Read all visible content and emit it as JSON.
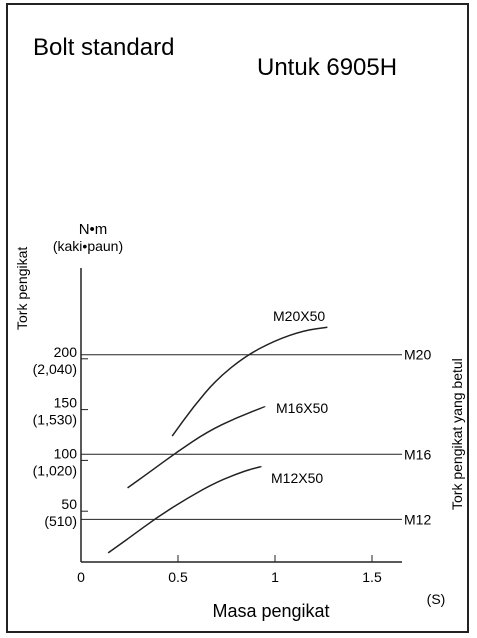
{
  "title": "Bolt standard",
  "subtitle": "Untuk 6905H",
  "y_unit": "N•m",
  "y_unit_alt": "(kaki•paun)",
  "y_label_left": "Tork pengikat",
  "y_label_right": "Tork pengikat yang betul",
  "x_label": "Masa pengikat",
  "x_unit": "(S)",
  "chart_data": {
    "type": "line",
    "title": "Bolt standard",
    "subtitle": "Untuk 6905H",
    "xlabel": "Masa pengikat",
    "ylabel": "Tork pengikat",
    "y2label": "Tork pengikat yang betul",
    "xlim": [
      0,
      1.8
    ],
    "ylim": [
      0,
      300
    ],
    "x_ticks": [
      "0",
      "0.5",
      "1",
      "1.5"
    ],
    "x_tick_values": [
      0,
      0.5,
      1,
      1.5
    ],
    "y_ticks": [
      {
        "value": 200,
        "label": "200",
        "alt": "(2,040)"
      },
      {
        "value": 150,
        "label": "150",
        "alt": "(1,530)"
      },
      {
        "value": 100,
        "label": "100",
        "alt": "(1,020)"
      },
      {
        "value": 50,
        "label": "50",
        "alt": "(510)"
      }
    ],
    "reference_lines": [
      {
        "name": "M20",
        "value": 204
      },
      {
        "name": "M16",
        "value": 106
      },
      {
        "name": "M12",
        "value": 42
      }
    ],
    "series": [
      {
        "name": "M20X50",
        "x": [
          0.47,
          0.58,
          0.7,
          0.85,
          1.0,
          1.15,
          1.27
        ],
        "y": [
          124,
          153,
          180,
          203,
          218,
          228,
          231
        ]
      },
      {
        "name": "M16X50",
        "x": [
          0.24,
          0.35,
          0.5,
          0.65,
          0.8,
          0.95
        ],
        "y": [
          73,
          88,
          109,
          128,
          142,
          153
        ]
      },
      {
        "name": "M12X50",
        "x": [
          0.14,
          0.25,
          0.4,
          0.55,
          0.7,
          0.85,
          0.93
        ],
        "y": [
          9,
          24,
          45,
          63,
          79,
          90,
          94
        ]
      }
    ]
  }
}
